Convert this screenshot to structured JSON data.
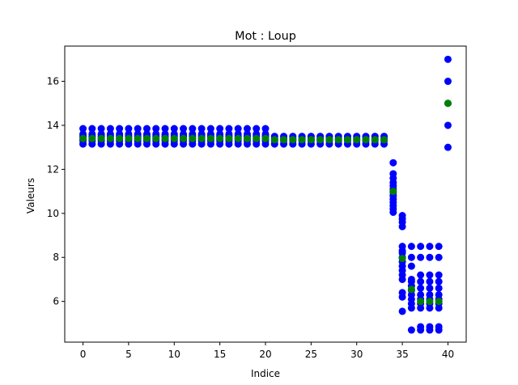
{
  "chart_data": {
    "type": "scatter",
    "title": "Mot : Loup",
    "xlabel": "Indice",
    "ylabel": "Valeurs",
    "xlim": [
      -2,
      42
    ],
    "ylim": [
      4.15,
      17.6
    ],
    "xticks": [
      0,
      5,
      10,
      15,
      20,
      25,
      30,
      35,
      40
    ],
    "yticks": [
      6,
      8,
      10,
      12,
      14,
      16
    ],
    "grid": false,
    "colors": {
      "values": "#0000ff",
      "mean": "#008000"
    },
    "values_by_index": [
      {
        "x": 0,
        "y": [
          13.15,
          13.3,
          13.4,
          13.5,
          13.6,
          13.85
        ]
      },
      {
        "x": 1,
        "y": [
          13.15,
          13.3,
          13.4,
          13.5,
          13.6,
          13.85
        ]
      },
      {
        "x": 2,
        "y": [
          13.15,
          13.3,
          13.4,
          13.5,
          13.6,
          13.85
        ]
      },
      {
        "x": 3,
        "y": [
          13.15,
          13.3,
          13.4,
          13.5,
          13.6,
          13.85
        ]
      },
      {
        "x": 4,
        "y": [
          13.15,
          13.3,
          13.4,
          13.5,
          13.6,
          13.85
        ]
      },
      {
        "x": 5,
        "y": [
          13.15,
          13.3,
          13.4,
          13.5,
          13.6,
          13.85
        ]
      },
      {
        "x": 6,
        "y": [
          13.15,
          13.3,
          13.4,
          13.5,
          13.6,
          13.85
        ]
      },
      {
        "x": 7,
        "y": [
          13.15,
          13.3,
          13.4,
          13.5,
          13.6,
          13.85
        ]
      },
      {
        "x": 8,
        "y": [
          13.15,
          13.3,
          13.4,
          13.5,
          13.6,
          13.85
        ]
      },
      {
        "x": 9,
        "y": [
          13.15,
          13.3,
          13.4,
          13.5,
          13.6,
          13.85
        ]
      },
      {
        "x": 10,
        "y": [
          13.15,
          13.3,
          13.4,
          13.5,
          13.6,
          13.85
        ]
      },
      {
        "x": 11,
        "y": [
          13.15,
          13.3,
          13.4,
          13.5,
          13.6,
          13.85
        ]
      },
      {
        "x": 12,
        "y": [
          13.15,
          13.3,
          13.4,
          13.5,
          13.6,
          13.85
        ]
      },
      {
        "x": 13,
        "y": [
          13.15,
          13.3,
          13.4,
          13.5,
          13.6,
          13.85
        ]
      },
      {
        "x": 14,
        "y": [
          13.15,
          13.3,
          13.4,
          13.5,
          13.6,
          13.85
        ]
      },
      {
        "x": 15,
        "y": [
          13.15,
          13.3,
          13.4,
          13.5,
          13.6,
          13.85
        ]
      },
      {
        "x": 16,
        "y": [
          13.15,
          13.3,
          13.4,
          13.5,
          13.6,
          13.85
        ]
      },
      {
        "x": 17,
        "y": [
          13.15,
          13.3,
          13.4,
          13.5,
          13.6,
          13.85
        ]
      },
      {
        "x": 18,
        "y": [
          13.15,
          13.3,
          13.4,
          13.5,
          13.6,
          13.85
        ]
      },
      {
        "x": 19,
        "y": [
          13.15,
          13.3,
          13.4,
          13.5,
          13.6,
          13.85
        ]
      },
      {
        "x": 20,
        "y": [
          13.15,
          13.3,
          13.4,
          13.5,
          13.6,
          13.85
        ]
      },
      {
        "x": 21,
        "y": [
          13.15,
          13.3,
          13.4,
          13.5
        ]
      },
      {
        "x": 22,
        "y": [
          13.15,
          13.3,
          13.4,
          13.5
        ]
      },
      {
        "x": 23,
        "y": [
          13.15,
          13.3,
          13.4,
          13.5
        ]
      },
      {
        "x": 24,
        "y": [
          13.15,
          13.3,
          13.4,
          13.5
        ]
      },
      {
        "x": 25,
        "y": [
          13.15,
          13.3,
          13.4,
          13.5
        ]
      },
      {
        "x": 26,
        "y": [
          13.15,
          13.3,
          13.4,
          13.5
        ]
      },
      {
        "x": 27,
        "y": [
          13.15,
          13.3,
          13.4,
          13.5
        ]
      },
      {
        "x": 28,
        "y": [
          13.15,
          13.3,
          13.4,
          13.5
        ]
      },
      {
        "x": 29,
        "y": [
          13.15,
          13.3,
          13.4,
          13.5
        ]
      },
      {
        "x": 30,
        "y": [
          13.15,
          13.3,
          13.4,
          13.5
        ]
      },
      {
        "x": 31,
        "y": [
          13.15,
          13.3,
          13.4,
          13.5
        ]
      },
      {
        "x": 32,
        "y": [
          13.15,
          13.3,
          13.4,
          13.5
        ]
      },
      {
        "x": 33,
        "y": [
          13.15,
          13.3,
          13.4,
          13.5
        ]
      },
      {
        "x": 34,
        "y": [
          10.05,
          10.2,
          10.35,
          10.5,
          10.65,
          10.8,
          10.95,
          11.1,
          11.25,
          11.4,
          11.6,
          11.8,
          12.3
        ]
      },
      {
        "x": 35,
        "y": [
          5.55,
          6.2,
          6.4,
          7.0,
          7.2,
          7.4,
          7.6,
          7.8,
          8.0,
          8.2,
          8.3,
          8.5,
          9.4,
          9.6,
          9.75,
          9.9
        ]
      },
      {
        "x": 36,
        "y": [
          4.7,
          5.7,
          5.9,
          6.1,
          6.3,
          6.5,
          6.7,
          6.9,
          7.0,
          7.6,
          8.0,
          8.5
        ]
      },
      {
        "x": 37,
        "y": [
          4.7,
          4.85,
          5.7,
          5.9,
          6.1,
          6.3,
          6.6,
          6.9,
          7.2,
          8.0,
          8.5
        ]
      },
      {
        "x": 38,
        "y": [
          4.7,
          4.85,
          5.7,
          5.9,
          6.1,
          6.3,
          6.6,
          6.9,
          7.2,
          8.0,
          8.5
        ]
      },
      {
        "x": 39,
        "y": [
          4.7,
          4.85,
          5.7,
          5.9,
          6.1,
          6.3,
          6.6,
          6.9,
          7.2,
          8.0,
          8.5
        ]
      },
      {
        "x": 40,
        "y": [
          13.0,
          14.0,
          15.0,
          16.0,
          17.0
        ]
      }
    ],
    "mean_by_index": [
      {
        "x": 0,
        "y": 13.4
      },
      {
        "x": 1,
        "y": 13.4
      },
      {
        "x": 2,
        "y": 13.4
      },
      {
        "x": 3,
        "y": 13.4
      },
      {
        "x": 4,
        "y": 13.4
      },
      {
        "x": 5,
        "y": 13.4
      },
      {
        "x": 6,
        "y": 13.4
      },
      {
        "x": 7,
        "y": 13.4
      },
      {
        "x": 8,
        "y": 13.4
      },
      {
        "x": 9,
        "y": 13.4
      },
      {
        "x": 10,
        "y": 13.4
      },
      {
        "x": 11,
        "y": 13.4
      },
      {
        "x": 12,
        "y": 13.4
      },
      {
        "x": 13,
        "y": 13.4
      },
      {
        "x": 14,
        "y": 13.4
      },
      {
        "x": 15,
        "y": 13.4
      },
      {
        "x": 16,
        "y": 13.4
      },
      {
        "x": 17,
        "y": 13.4
      },
      {
        "x": 18,
        "y": 13.4
      },
      {
        "x": 19,
        "y": 13.4
      },
      {
        "x": 20,
        "y": 13.4
      },
      {
        "x": 21,
        "y": 13.35
      },
      {
        "x": 22,
        "y": 13.35
      },
      {
        "x": 23,
        "y": 13.35
      },
      {
        "x": 24,
        "y": 13.35
      },
      {
        "x": 25,
        "y": 13.35
      },
      {
        "x": 26,
        "y": 13.35
      },
      {
        "x": 27,
        "y": 13.35
      },
      {
        "x": 28,
        "y": 13.35
      },
      {
        "x": 29,
        "y": 13.35
      },
      {
        "x": 30,
        "y": 13.35
      },
      {
        "x": 31,
        "y": 13.35
      },
      {
        "x": 32,
        "y": 13.35
      },
      {
        "x": 33,
        "y": 13.35
      },
      {
        "x": 34,
        "y": 11.0
      },
      {
        "x": 35,
        "y": 7.95
      },
      {
        "x": 36,
        "y": 6.55
      },
      {
        "x": 37,
        "y": 6.0
      },
      {
        "x": 38,
        "y": 6.0
      },
      {
        "x": 39,
        "y": 6.0
      },
      {
        "x": 40,
        "y": 15.0
      }
    ]
  }
}
